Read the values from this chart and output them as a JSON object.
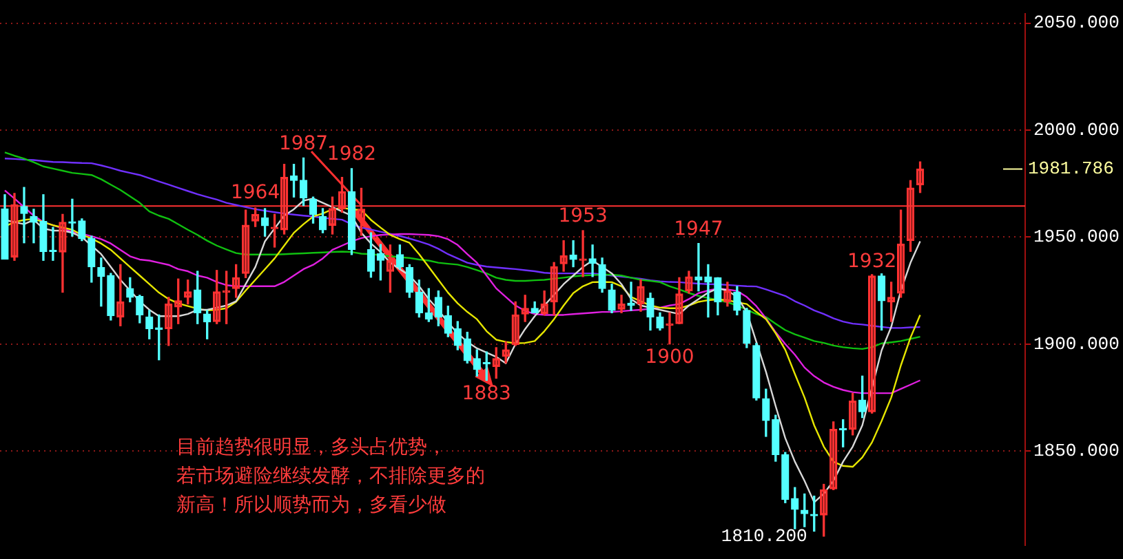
{
  "chart_data": {
    "type": "candlestick",
    "categories": [
      null,
      null,
      null,
      null,
      null,
      null,
      null,
      null,
      null,
      null,
      null,
      null,
      null,
      null,
      null,
      null,
      null,
      null,
      null,
      null,
      null,
      null,
      null,
      null,
      null,
      null,
      null,
      null,
      null,
      null,
      null,
      null,
      null,
      null,
      null,
      null,
      null,
      null,
      null,
      null,
      null,
      null,
      null,
      null,
      null,
      null,
      null,
      null,
      null,
      null,
      null,
      null,
      null,
      null,
      null,
      null,
      null,
      null,
      null,
      null,
      null,
      null,
      null,
      null,
      null,
      null,
      null,
      null,
      null,
      null,
      null,
      null,
      null,
      null,
      null,
      null,
      null,
      null,
      null,
      null,
      null,
      null,
      null,
      null,
      null,
      null,
      null,
      null,
      null,
      null,
      null,
      null,
      null,
      null,
      null,
      null
    ],
    "ohlc": [
      [
        1963.2,
        1969.8,
        1939.7,
        1939.7
      ],
      [
        1940.6,
        1970.4,
        1939.1,
        1965.1
      ],
      [
        1964.3,
        1973.2,
        1947.3,
        1961.0
      ],
      [
        1959.6,
        1963.0,
        1947.3,
        1956.9
      ],
      [
        1957.3,
        1969.8,
        1939.1,
        1943.2
      ],
      [
        1943.8,
        1954.5,
        1939.1,
        1943.2
      ],
      [
        1943.0,
        1960.6,
        1924.2,
        1956.9
      ],
      [
        1957.1,
        1967.7,
        1950.4,
        1956.5
      ],
      [
        1957.5,
        1958.5,
        1948.3,
        1949.3
      ],
      [
        1949.3,
        1950.4,
        1928.9,
        1936.1
      ],
      [
        1935.7,
        1940.2,
        1917.7,
        1931.6
      ],
      [
        1932.0,
        1933.0,
        1911.2,
        1913.2
      ],
      [
        1912.6,
        1937.1,
        1908.5,
        1919.7
      ],
      [
        1925.9,
        1931.0,
        1919.7,
        1921.8
      ],
      [
        1922.2,
        1922.8,
        1909.9,
        1913.6
      ],
      [
        1912.6,
        1915.7,
        1902.4,
        1907.1
      ],
      [
        1907.5,
        1913.6,
        1892.6,
        1906.9
      ],
      [
        1907.1,
        1921.8,
        1899.3,
        1918.7
      ],
      [
        1917.3,
        1930.4,
        1909.5,
        1920.2
      ],
      [
        1921.8,
        1929.9,
        1918.7,
        1924.4
      ],
      [
        1925.3,
        1934.0,
        1909.5,
        1914.6
      ],
      [
        1914.0,
        1915.7,
        1902.4,
        1910.3
      ],
      [
        1910.5,
        1934.4,
        1909.5,
        1924.4
      ],
      [
        1924.2,
        1934.0,
        1909.5,
        1924.6
      ],
      [
        1925.9,
        1937.1,
        1921.8,
        1931.0
      ],
      [
        1933.0,
        1962.6,
        1931.0,
        1955.5
      ],
      [
        1957.5,
        1963.6,
        1954.9,
        1960.6
      ],
      [
        1959.0,
        1963.3,
        1950.4,
        1955.3
      ],
      [
        1953.9,
        1960.6,
        1945.3,
        1954.5
      ],
      [
        1953.4,
        1984.0,
        1951.4,
        1977.9
      ],
      [
        1978.5,
        1984.0,
        1968.7,
        1976.5
      ],
      [
        1976.5,
        1987,
        1964.7,
        1968.3
      ],
      [
        1967.7,
        1968.7,
        1956.5,
        1960.6
      ],
      [
        1959.6,
        1963.3,
        1952.0,
        1953.4
      ],
      [
        1955.5,
        1968.7,
        1951.4,
        1963.3
      ],
      [
        1963.3,
        1977.9,
        1961.6,
        1971.2
      ],
      [
        1971.2,
        1982,
        1941.8,
        1944.2
      ],
      [
        1958.1,
        1972.8,
        1950.8,
        1963.0
      ],
      [
        1944.2,
        1952.0,
        1931.2,
        1934.0
      ],
      [
        1942.2,
        1946.5,
        1929.9,
        1939.1
      ],
      [
        1934.0,
        1946.3,
        1924.2,
        1939.1
      ],
      [
        1941.8,
        1946.3,
        1935.0,
        1936.1
      ],
      [
        1935.7,
        1937.1,
        1921.8,
        1924.2
      ],
      [
        1924.2,
        1929.9,
        1912.6,
        1914.6
      ],
      [
        1914.6,
        1925.9,
        1910.5,
        1911.6
      ],
      [
        1921.8,
        1924.8,
        1908.5,
        1912.6
      ],
      [
        1913.2,
        1917.7,
        1903.4,
        1905.0
      ],
      [
        1907.1,
        1910.5,
        1897.3,
        1899.3
      ],
      [
        1902.4,
        1905.5,
        1891.1,
        1892.2
      ],
      [
        1893.2,
        1897.3,
        1885.0,
        1888.1
      ],
      [
        1891.1,
        1896.3,
        1883,
        1890.7
      ],
      [
        1889.5,
        1898.3,
        1884.0,
        1893.2
      ],
      [
        1894.2,
        1901.0,
        1891.1,
        1897.3
      ],
      [
        1899.7,
        1919.7,
        1899.3,
        1913.6
      ],
      [
        1914.0,
        1922.8,
        1910.5,
        1916.7
      ],
      [
        1916.7,
        1919.7,
        1914.6,
        1914.6
      ],
      [
        1914.2,
        1924.8,
        1913.6,
        1918.7
      ],
      [
        1919.7,
        1938.1,
        1913.6,
        1936.1
      ],
      [
        1937.5,
        1948.3,
        1934.0,
        1941.2
      ],
      [
        1941.6,
        1948.3,
        1936.1,
        1939.5
      ],
      [
        1939.1,
        1953,
        1931.5,
        1939.5
      ],
      [
        1939.8,
        1946.3,
        1931.5,
        1937.7
      ],
      [
        1937.1,
        1940.2,
        1924.2,
        1925.9
      ],
      [
        1925.3,
        1928.0,
        1914.6,
        1915.7
      ],
      [
        1916.3,
        1922.8,
        1914.6,
        1918.7
      ],
      [
        1919.1,
        1928.9,
        1915.7,
        1918.1
      ],
      [
        1918.7,
        1930.0,
        1915.3,
        1926.9
      ],
      [
        1921.4,
        1923.8,
        1906.5,
        1912.6
      ],
      [
        1912.6,
        1914.6,
        1906.5,
        1907.5
      ],
      [
        1908.8,
        1914.6,
        1900,
        1909.4
      ],
      [
        1909.5,
        1931.0,
        1909.5,
        1923.4
      ],
      [
        1924.8,
        1934.0,
        1923.8,
        1931.4
      ],
      [
        1931.4,
        1947,
        1924.8,
        1929.9
      ],
      [
        1931.4,
        1937.1,
        1912.6,
        1928.9
      ],
      [
        1931.0,
        1931.0,
        1913.6,
        1919.7
      ],
      [
        1919.7,
        1928.9,
        1917.7,
        1924.8
      ],
      [
        1924.2,
        1926.9,
        1913.6,
        1915.7
      ],
      [
        1915.7,
        1916.7,
        1898.3,
        1900.3
      ],
      [
        1899.3,
        1900.3,
        1873.8,
        1874.8
      ],
      [
        1874.4,
        1878.9,
        1856.8,
        1864.2
      ],
      [
        1864.6,
        1866.7,
        1845.2,
        1848.3
      ],
      [
        1848.3,
        1849.3,
        1825.8,
        1827.4
      ],
      [
        1827.8,
        1832.9,
        1813.6,
        1822.7
      ],
      [
        1822.3,
        1829.9,
        1814.6,
        1820.7
      ],
      [
        1820.3,
        1828.9,
        1812.5,
        1819.7
      ],
      [
        1820.1,
        1834.4,
        1810.2,
        1831.9
      ],
      [
        1832.3,
        1863.6,
        1831.9,
        1860.1
      ],
      [
        1860.5,
        1864.6,
        1851.9,
        1859.9
      ],
      [
        1860.1,
        1876.9,
        1857.5,
        1873.4
      ],
      [
        1873.8,
        1885.0,
        1865.6,
        1868.3
      ],
      [
        1868.3,
        1932.4,
        1867.7,
        1931.8
      ],
      [
        1931.8,
        1932.8,
        1906.5,
        1920.2
      ],
      [
        1919.7,
        1928.9,
        1910.5,
        1921.8
      ],
      [
        1923.8,
        1962.6,
        1921.8,
        1946.7
      ],
      [
        1948.4,
        1976.4,
        1943.3,
        1972.9
      ],
      [
        1974.4,
        1985.1,
        1970.8,
        1981.786
      ]
    ],
    "colors": [
      "#54ffff",
      "#ff3232",
      "#54ffff",
      "#54ffff",
      "#54ffff",
      "#54ffff",
      "#ff3232",
      "#54ffff",
      "#54ffff",
      "#54ffff",
      "#54ffff",
      "#54ffff",
      "#ff3232",
      "#54ffff",
      "#54ffff",
      "#54ffff",
      "#54ffff",
      "#ff3232",
      "#ff3232",
      "#ff3232",
      "#54ffff",
      "#54ffff",
      "#ff3232",
      "#ff3232",
      "#ff3232",
      "#ff3232",
      "#ff3232",
      "#54ffff",
      "#ff3232",
      "#ff3232",
      "#54ffff",
      "#54ffff",
      "#54ffff",
      "#54ffff",
      "#ff3232",
      "#ff3232",
      "#54ffff",
      "#ff3232",
      "#54ffff",
      "#54ffff",
      "#ff3232",
      "#54ffff",
      "#54ffff",
      "#54ffff",
      "#54ffff",
      "#54ffff",
      "#54ffff",
      "#54ffff",
      "#54ffff",
      "#54ffff",
      "#54ffff",
      "#ff3232",
      "#ff3232",
      "#ff3232",
      "#ff3232",
      "#54ffff",
      "#ff3232",
      "#ff3232",
      "#ff3232",
      "#54ffff",
      "#ff3232",
      "#54ffff",
      "#54ffff",
      "#54ffff",
      "#ff3232",
      "#54ffff",
      "#ff3232",
      "#54ffff",
      "#54ffff",
      "#ff3232",
      "#ff3232",
      "#ff3232",
      "#54ffff",
      "#54ffff",
      "#54ffff",
      "#ff3232",
      "#54ffff",
      "#54ffff",
      "#54ffff",
      "#54ffff",
      "#54ffff",
      "#54ffff",
      "#54ffff",
      "#54ffff",
      "#54ffff",
      "#ff3232",
      "#ff3232",
      "#54ffff",
      "#ff3232",
      "#54ffff",
      "#ff3232",
      "#54ffff",
      "#ff3232",
      "#ff3232",
      "#ff3232",
      "#ff3232"
    ],
    "series": [
      {
        "type": "line",
        "color": "#d8d8d8",
        "values": [
          1958,
          1957,
          1956,
          1958,
          1954,
          1953,
          1953,
          1952,
          1950,
          1946,
          1942,
          1936,
          1930,
          1925,
          1920,
          1916,
          1913,
          1913,
          1913,
          1914,
          1916,
          1916,
          1917,
          1918,
          1920,
          1928,
          1936,
          1948,
          1954,
          1960,
          1963,
          1967,
          1968,
          1966,
          1964,
          1962,
          1960,
          1952,
          1947,
          1943,
          1938,
          1935,
          1932,
          1927,
          1921,
          1916,
          1910,
          1905,
          1901,
          1898,
          1896,
          1894,
          1891,
          1900,
          1907,
          1913,
          1918,
          1923,
          1928,
          1932,
          1936,
          1939,
          1936,
          1933,
          1928,
          1921,
          1918,
          1917,
          1916,
          1915,
          1914,
          1918,
          1921,
          1924,
          1926,
          1925,
          1922,
          1915,
          1901,
          1887,
          1871,
          1856,
          1845,
          1836,
          1826,
          1830,
          1836,
          1845,
          1852,
          1862,
          null,
          1897,
          1908,
          1925,
          1938,
          1948
        ]
      },
      {
        "type": "line",
        "color": "#e6e600",
        "values": [
          1955,
          1957,
          1958,
          1958.5,
          1957,
          1955.5,
          1954.5,
          1953.4,
          1951,
          1949.3,
          1947,
          1944,
          1940,
          1936,
          1932,
          1928,
          1924,
          1921,
          1919,
          1917.7,
          1916.5,
          1915.7,
          1916,
          1916.7,
          1919.7,
          1925,
          1930,
          1935,
          1940,
          1946,
          1952,
          1956,
          1959.6,
          1961,
          1963,
          1963.6,
          1963,
          1962.6,
          1958,
          1954.4,
          1951,
          1949,
          1947.3,
          1942,
          1936,
          1930,
          1924,
          1919,
          1915,
          1911.6,
          1906,
          1902,
          1901,
          1900.3,
          1900.5,
          1901.4,
          1906,
          1911.6,
          1918,
          1923.8,
          1927,
          1928.9,
          1929,
          1928.9,
          1927,
          1922,
          1920,
          1918,
          1917,
          1916.7,
          1916.7,
          1918,
          1919.7,
          1920.5,
          1920.8,
          1920.5,
          1919.5,
          1918.7,
          1915,
          1911.6,
          1905,
          1897.3,
          1886,
          1875,
          1862,
          1852,
          1845,
          1843,
          1842.6,
          1847,
          1854,
          1864,
          1875,
          1890,
          1903,
          1913.6
        ]
      },
      {
        "type": "line",
        "color": "#e020e0",
        "values": [
          1971.8,
          1968,
          1964,
          1960,
          1957,
          1955.5,
          1954,
          1952.4,
          1951.5,
          1950.4,
          1949,
          1947,
          1944,
          1941,
          1939.5,
          1939,
          1938,
          1937,
          1935,
          1934,
          1932,
          1931,
          1929,
          1927.5,
          1927,
          1927,
          1927,
          1927,
          1927,
          1929,
          1932,
          1935,
          1937,
          1940,
          1944,
          1946,
          1948,
          1949.5,
          1950.4,
          1951,
          1951.2,
          1951.4,
          1951.4,
          1951.2,
          1951,
          1950.4,
          1949,
          1946.3,
          1942,
          1938,
          1932,
          1926,
          1922,
          1918,
          1915.5,
          1914,
          1913.6,
          1913.6,
          1913.6,
          1914,
          1914.3,
          1914.6,
          1915,
          1915,
          1915.3,
          1915.7,
          1916,
          1916.5,
          1917,
          1918,
          1918.7,
          1921,
          1923.8,
          1925,
          1925.9,
          1925.5,
          1924.8,
          1922,
          1917.7,
          1912,
          1905.5,
          1900,
          1895,
          1889,
          1885,
          1882,
          1880,
          1878.5,
          1877.5,
          1877,
          1877,
          1877,
          1877,
          1879,
          1881,
          1883
        ]
      },
      {
        "type": "line",
        "color": "#10c010",
        "values": [
          1989.6,
          1988,
          1986.7,
          1985,
          1983,
          1982,
          1981,
          1980,
          1979.5,
          1979,
          1977,
          1974.5,
          1972,
          1969,
          1966,
          1962,
          1960,
          1958.5,
          1956,
          1953.4,
          1951,
          1948.3,
          1946,
          1944.2,
          1942.5,
          1941.8,
          1941.8,
          1941.8,
          1941.8,
          1942,
          1942.2,
          1942.4,
          1942.6,
          1942.8,
          1943,
          1943.2,
          1943,
          1942.2,
          1942,
          1941.5,
          1941,
          1940.6,
          1940.2,
          1939.5,
          1939,
          1938,
          1937.5,
          1937.1,
          1936,
          1934.5,
          1933,
          1931,
          1930,
          1929.5,
          1929.5,
          1929.8,
          1930,
          1930.5,
          1931,
          1931.6,
          1932,
          1932.2,
          1932.4,
          1932.4,
          1932,
          1931,
          1930,
          1929.5,
          1928.9,
          1927,
          1925.5,
          1923.8,
          1922.5,
          1921.5,
          1920.5,
          1919.5,
          1918,
          1916,
          1914,
          1912.6,
          1909.5,
          1906.5,
          1904.5,
          1903,
          1901.4,
          1900.5,
          1899.3,
          1898.5,
          1898,
          1897.7,
          1898.5,
          1900.3,
          1900.8,
          1901.4,
          1902.4,
          1903.4
        ]
      },
      {
        "type": "line",
        "color": "#7030ff",
        "values": [
          1986.7,
          1986.5,
          1986.2,
          1986,
          1985.5,
          1985.1,
          1985,
          1984.8,
          1984.6,
          1984.5,
          1983.5,
          1982.3,
          1981,
          1980,
          1979,
          1977.5,
          1976,
          1974.5,
          1973,
          1971.5,
          1970,
          1968.7,
          1967.5,
          1966,
          1965,
          1964,
          1963,
          1962.3,
          1961.6,
          1961,
          1960.5,
          1960,
          1959.6,
          1959,
          1958.5,
          1958.1,
          1956,
          1954.4,
          1953.5,
          1952.5,
          1951.5,
          1950.5,
          1949.3,
          1948,
          1946.5,
          1944.5,
          1942,
          1940,
          1938,
          1937,
          1936.2,
          1935.8,
          1935.4,
          1935,
          1934.5,
          1934,
          1933.3,
          1933,
          1933,
          1933,
          1933,
          1933,
          1932.5,
          1932,
          1931.5,
          1931,
          1930.5,
          1929.8,
          1929.3,
          1929,
          1928.9,
          1928.5,
          1928.2,
          1928,
          1927.9,
          1927.6,
          1927.3,
          1927,
          1926.9,
          1925.5,
          1924,
          1922.5,
          1920,
          1918,
          1915.7,
          1914,
          1912,
          1910.5,
          1909.5,
          1909.1,
          1908.5,
          1908,
          1907.5,
          1907.5,
          1907.8,
          1907.9
        ]
      }
    ],
    "ylim": [
      1805.8,
      2054.5
    ],
    "yticks": [
      {
        "value": 1850,
        "label": "1850.000"
      },
      {
        "value": 1900,
        "label": "1900.000"
      },
      {
        "value": 1950,
        "label": "1950.000"
      },
      {
        "value": 2000,
        "label": "2000.000"
      },
      {
        "value": 2050,
        "label": "2050.000"
      }
    ],
    "grid": "y",
    "tick_labels": "y",
    "ref_lines": [
      {
        "axis": "y",
        "value": 1964.5,
        "color": "#ff3232"
      }
    ],
    "annotations": [
      {
        "text": "1964",
        "y": 1964
      },
      {
        "text": "1987",
        "y": 1987
      },
      {
        "text": "1982",
        "y": 1982
      },
      {
        "text": "1883",
        "y": 1883
      },
      {
        "text": "1953",
        "y": 1953
      },
      {
        "text": "1900",
        "y": 1900
      },
      {
        "text": "1947",
        "y": 1947
      },
      {
        "text": "1932",
        "y": 1932
      },
      "1810.200",
      "1981.786",
      "目前趋势很明显，多头占优势，",
      "若市场避险继续发酵，不排除更多的",
      "新高！所以顺势而为，多看少做"
    ]
  }
}
